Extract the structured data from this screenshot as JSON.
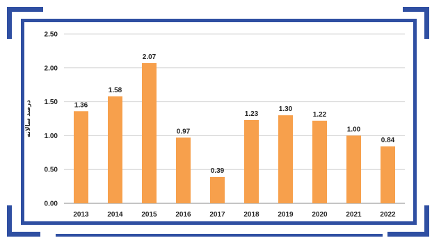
{
  "theme": {
    "frame_color": "#2f4fa2",
    "bar_color": "#f7a04c",
    "grid_color": "#d4d4d4",
    "axis_color": "#888888"
  },
  "chart_data": {
    "type": "bar",
    "categories": [
      "2013",
      "2014",
      "2015",
      "2016",
      "2017",
      "2018",
      "2019",
      "2020",
      "2021",
      "2022"
    ],
    "values": [
      1.36,
      1.58,
      2.07,
      0.97,
      0.39,
      1.23,
      1.3,
      1.22,
      1.0,
      0.84
    ],
    "value_labels": [
      "1.36",
      "1.58",
      "2.07",
      "0.97",
      "0.39",
      "1.23",
      "1.30",
      "1.22",
      "1.00",
      "0.84"
    ],
    "y_ticks": [
      "0.00",
      "0.50",
      "1.00",
      "1.50",
      "2.00",
      "2.50"
    ],
    "ylim": [
      0,
      2.5
    ],
    "ylabel": "درصد سالانه",
    "title": "",
    "xlabel": "",
    "grid": true,
    "legend": "none"
  }
}
